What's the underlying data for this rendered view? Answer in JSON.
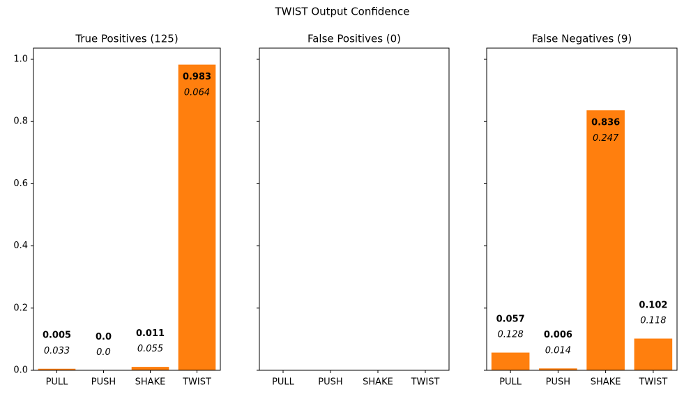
{
  "title": "TWIST Output Confidence",
  "chart_data": [
    {
      "type": "bar",
      "title": "True Positives (125)",
      "categories": [
        "PULL",
        "PUSH",
        "SHAKE",
        "TWIST"
      ],
      "values": [
        0.005,
        0,
        0.011,
        0.983
      ],
      "value_labels": [
        "0.005",
        "0.0",
        "0.011",
        "0.983"
      ],
      "std_values": [
        0.033,
        0,
        0.055,
        0.064
      ],
      "std_labels": [
        "0.033",
        "0.0",
        "0.055",
        "0.064"
      ],
      "color": "#ff7f0e",
      "ylim": [
        0,
        1.036
      ],
      "yticks": [
        {
          "value": 0,
          "label": "0.0"
        },
        0.2,
        0.4,
        0.6,
        0.8,
        {
          "value": 1,
          "label": "1.0"
        }
      ]
    },
    {
      "type": "bar",
      "title": "False Positives (0)",
      "categories": [
        "PULL",
        "PUSH",
        "SHAKE",
        "TWIST"
      ]
    },
    {
      "type": "bar",
      "title": "False Negatives (9)",
      "categories": [
        "PULL",
        "PUSH",
        "SHAKE",
        "TWIST"
      ],
      "values": [
        0.057,
        0.006,
        0.836,
        0.102
      ],
      "value_labels": [
        "0.057",
        "0.006",
        "0.836",
        "0.102"
      ],
      "std_values": [
        0.128,
        0.014,
        0.247,
        0.118
      ],
      "std_labels": [
        "0.128",
        "0.014",
        "0.247",
        "0.118"
      ],
      "color": "#ff7f0e"
    }
  ]
}
